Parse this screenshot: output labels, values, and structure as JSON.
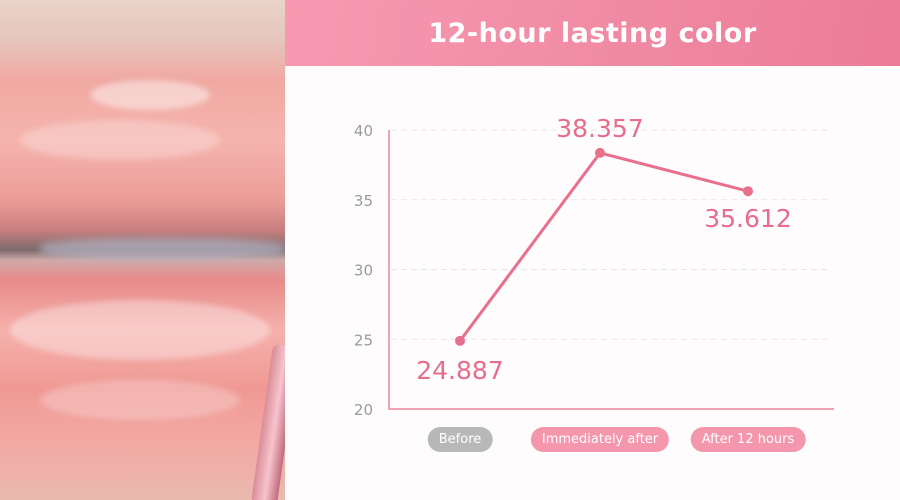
{
  "header": {
    "title": "12-hour lasting color"
  },
  "colors": {
    "accent": "#ec7b97",
    "line": "#e8708d",
    "before_pill": "#b8b8b8",
    "after_pill": "#f497ad",
    "axis": "#f1a3b6"
  },
  "chart_data": {
    "type": "line",
    "title": "12-hour lasting color",
    "categories": [
      "Before",
      "Immediately after",
      "After 12 hours"
    ],
    "values": [
      24.887,
      38.357,
      35.612
    ],
    "data_labels": [
      "24.887",
      "38.357",
      "35.612"
    ],
    "ylim": [
      20,
      40
    ],
    "yticks": [
      "20",
      "25",
      "30",
      "35",
      "40"
    ],
    "grid": true,
    "xlabel": "",
    "ylabel": ""
  }
}
